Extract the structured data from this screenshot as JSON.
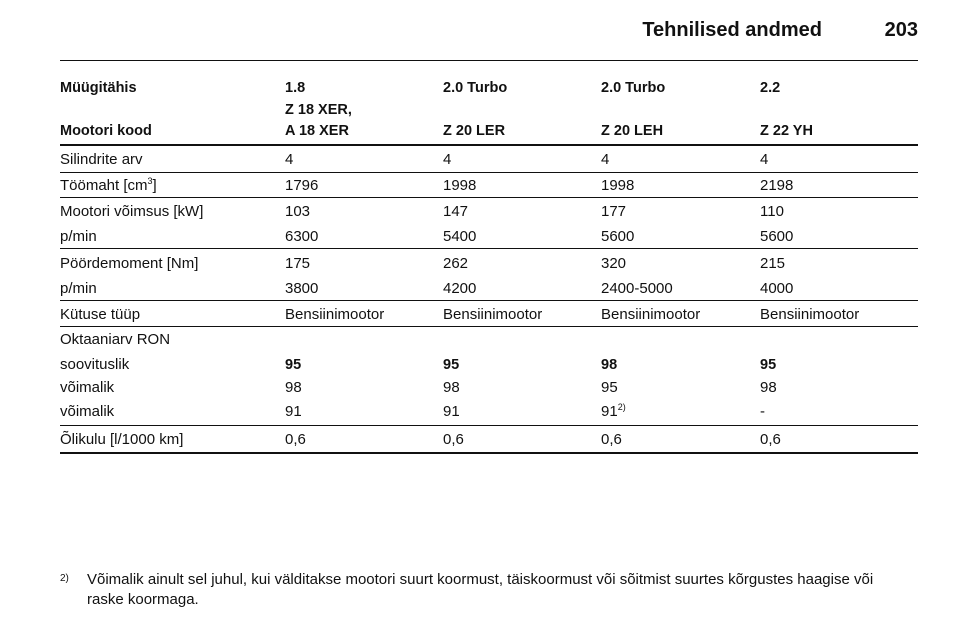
{
  "header": {
    "title": "Tehnilised andmed",
    "page": "203"
  },
  "table": {
    "head": [
      {
        "label": "Müügitähis",
        "values": [
          "1.8",
          "2.0 Turbo",
          "2.0 Turbo",
          "2.2"
        ]
      },
      {
        "label": "Mootori kood",
        "values": [
          [
            "Z 18 XER,",
            "A 18 XER"
          ],
          "Z 20 LER",
          "Z 20 LEH",
          "Z 22 YH"
        ]
      }
    ],
    "rows": [
      {
        "label": "Silindrite arv",
        "values": [
          "4",
          "4",
          "4",
          "4"
        ]
      },
      {
        "label": "Töömaht [cm",
        "label_sup": "3",
        "label_end": "]",
        "values": [
          "1796",
          "1998",
          "1998",
          "2198"
        ]
      },
      {
        "label": "Mootori võimsus [kW]",
        "values": [
          "103",
          "147",
          "177",
          "110"
        ]
      },
      {
        "label": "p/min",
        "values": [
          "6300",
          "5400",
          "5600",
          "5600"
        ]
      },
      {
        "label": "Pöördemoment [Nm]",
        "values": [
          "175",
          "262",
          "320",
          "215"
        ]
      },
      {
        "label": "p/min",
        "values": [
          "3800",
          "4200",
          "2400-5000",
          "4000"
        ]
      },
      {
        "label": "Kütuse tüüp",
        "values": [
          "Bensiinimootor",
          "Bensiinimootor",
          "Bensiinimootor",
          "Bensiinimootor"
        ]
      },
      {
        "label": "Oktaaniarv RON",
        "values": []
      },
      {
        "label": "soovituslik",
        "values": [
          "95",
          "95",
          "98",
          "95"
        ],
        "bold": true
      },
      {
        "label": "võimalik",
        "values": [
          "98",
          "98",
          "95",
          "98"
        ]
      },
      {
        "label": "võimalik",
        "values": [
          "91",
          "91",
          {
            "text": "91",
            "note": "2)"
          },
          "-"
        ]
      },
      {
        "label": "Õlikulu [l/1000 km]",
        "values": [
          "0,6",
          "0,6",
          "0,6",
          "0,6"
        ]
      }
    ]
  },
  "footnote": {
    "mark": "2)",
    "lines": [
      "Võimalik ainult sel juhul, kui välditakse mootori suurt koormust, täiskoormust või sõitmist suurtes kõrgustes haagise või",
      "raske koormaga."
    ]
  }
}
